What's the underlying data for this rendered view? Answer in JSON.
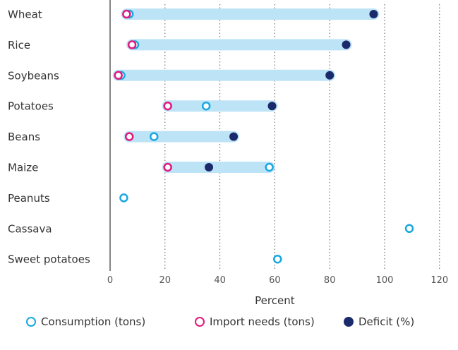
{
  "chart_data": {
    "type": "scatter",
    "title": "",
    "xlabel": "Percent",
    "xlim": [
      0,
      120
    ],
    "xticks": [
      0,
      20,
      40,
      60,
      80,
      100,
      120
    ],
    "grid": "vertical dotted",
    "legend_position": "bottom",
    "categories": [
      "Wheat",
      "Rice",
      "Soybeans",
      "Potatoes",
      "Beans",
      "Maize",
      "Peanuts",
      "Cassava",
      "Sweet potatoes"
    ],
    "series": [
      {
        "name": "Consumption (tons)",
        "marker": "open-circle",
        "color": "#1aa7e0",
        "values": [
          7,
          9,
          4,
          35,
          16,
          58,
          5,
          109,
          61
        ]
      },
      {
        "name": "Import needs (tons)",
        "marker": "open-circle",
        "color": "#e0197d",
        "values": [
          6,
          8,
          3,
          21,
          7,
          21,
          null,
          null,
          null
        ]
      },
      {
        "name": "Deficit (%)",
        "marker": "filled-circle",
        "color": "#1b2a6b",
        "values": [
          96,
          86,
          80,
          59,
          45,
          36,
          null,
          null,
          null
        ]
      }
    ],
    "range_bar_color": "#bde3f7"
  }
}
